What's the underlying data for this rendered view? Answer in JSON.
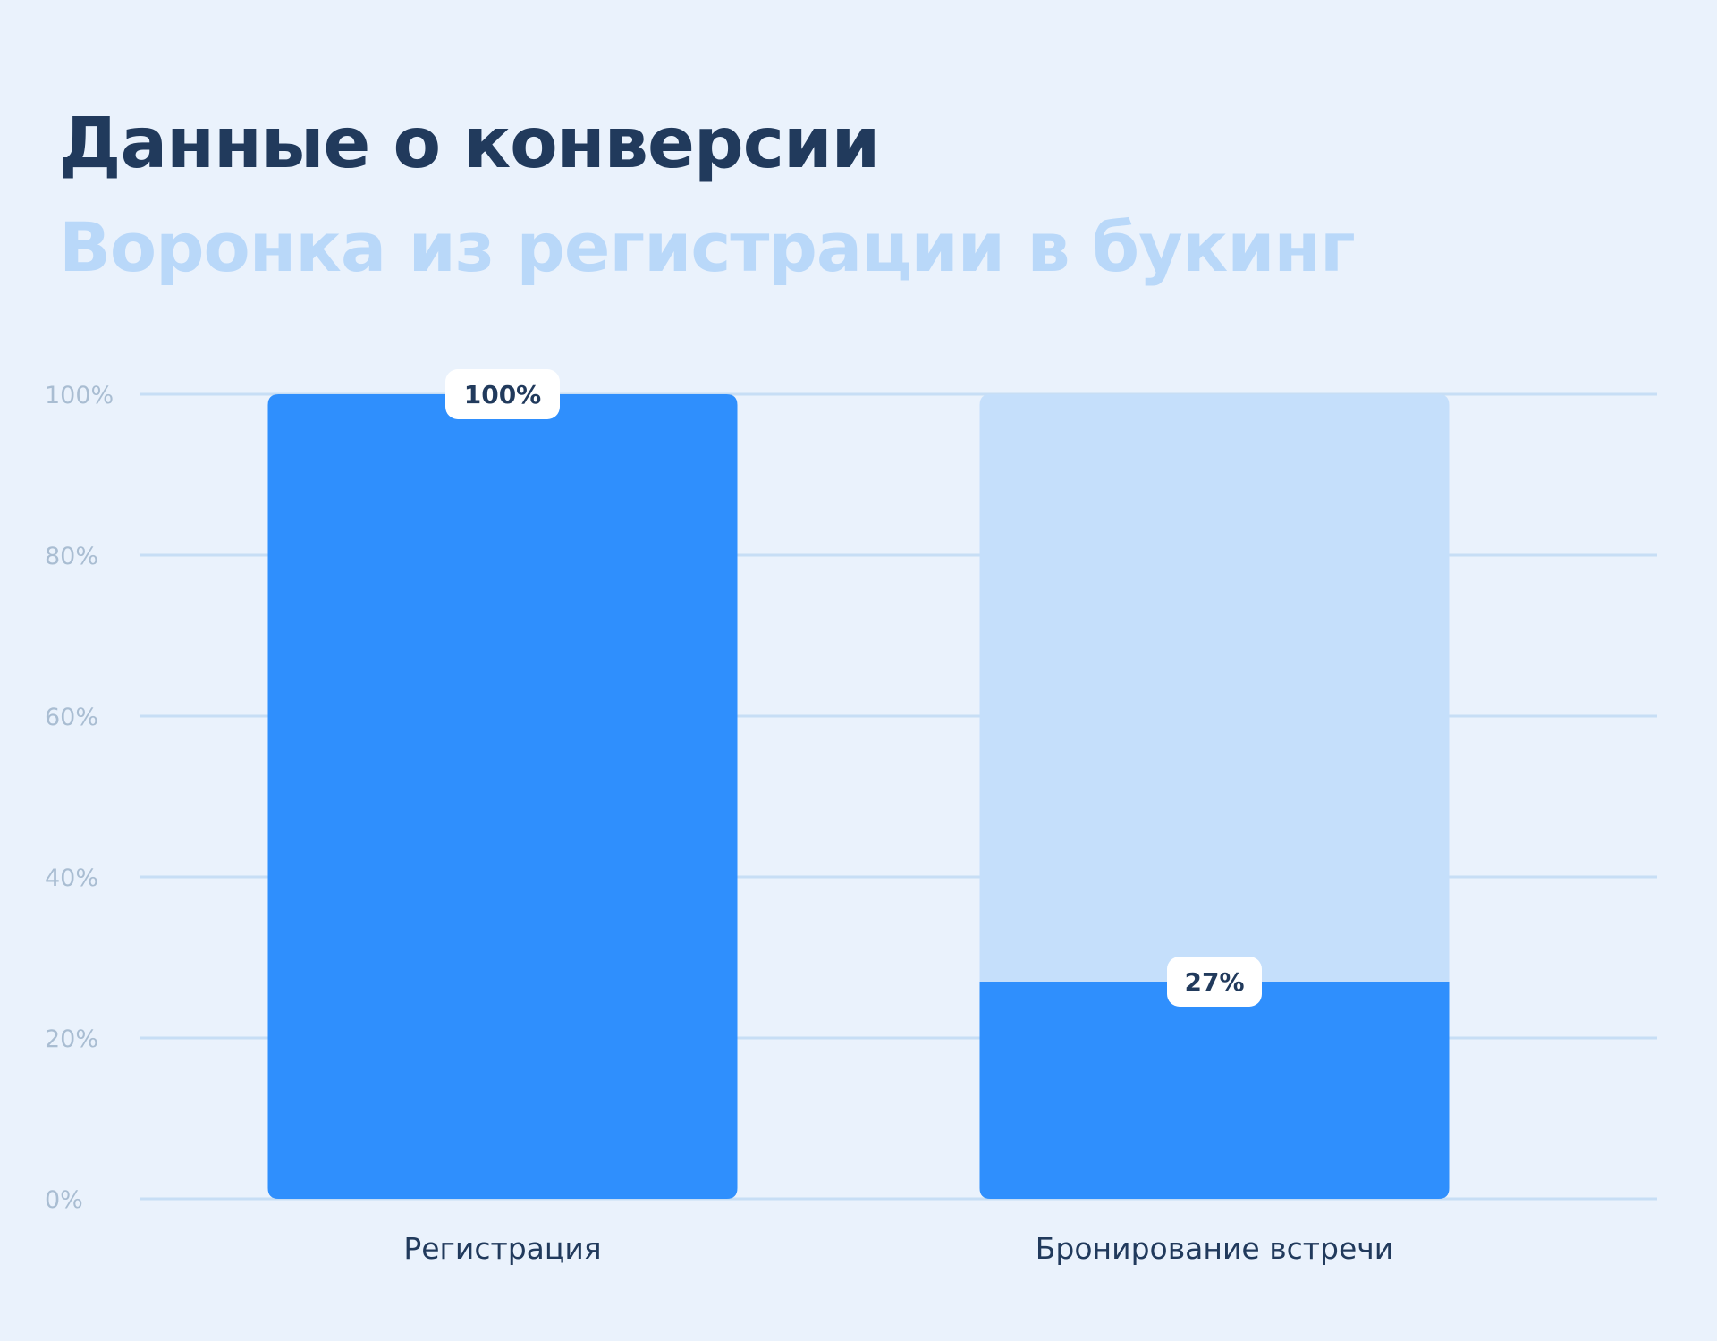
{
  "title": "Данные о конверсии",
  "subtitle": "Воронка из регистрации в букинг",
  "colors": {
    "background": "#eaf2fc",
    "bar": "#2f8ffd",
    "bar_remainder": "#c5dffb",
    "gridline": "#c7def5",
    "title": "#213a5c",
    "subtitle": "#b9d8f9",
    "tick_label": "#a9bdd2",
    "data_label_bg": "#ffffff"
  },
  "chart_data": {
    "type": "bar",
    "title": "Данные о конверсии",
    "subtitle": "Воронка из регистрации в букинг",
    "categories": [
      "Регистрация",
      "Бронирование встречи"
    ],
    "values": [
      100,
      27
    ],
    "data_labels": [
      "100%",
      "27%"
    ],
    "y_ticks": [
      "0%",
      "20%",
      "40%",
      "60%",
      "80%",
      "100%"
    ],
    "ylim": [
      0,
      100
    ],
    "grid": true,
    "legend": "none",
    "xlabel": "",
    "ylabel": ""
  }
}
